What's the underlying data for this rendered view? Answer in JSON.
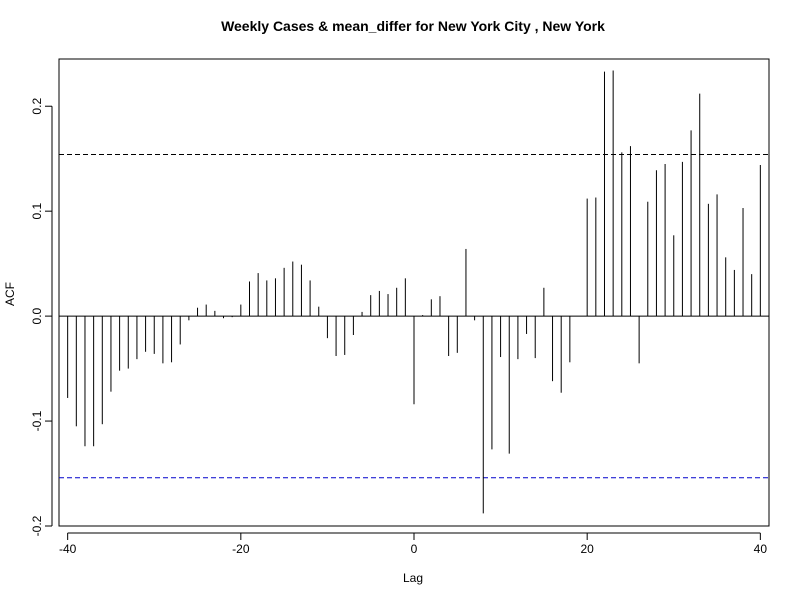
{
  "chart_data": {
    "type": "bar",
    "title": "Weekly Cases & mean_differ for New York City , New York",
    "xlabel": "Lag",
    "ylabel": "ACF",
    "xlim": [
      -41,
      41
    ],
    "ylim": [
      -0.2,
      0.245
    ],
    "x_ticks": [
      -40,
      -20,
      0,
      20,
      40
    ],
    "y_ticks": [
      -0.2,
      -0.1,
      0.0,
      0.1,
      0.2
    ],
    "x_tick_labels": [
      "-40",
      "-20",
      "0",
      "20",
      "40"
    ],
    "y_tick_labels": [
      "-0.2",
      "-0.1",
      "0.0",
      "0.1",
      "0.2"
    ],
    "confidence_bound": 0.154,
    "confidence_line_colors": {
      "upper": "#000000",
      "lower": "#0000CC"
    },
    "grid": false,
    "x": [
      -40,
      -39,
      -38,
      -37,
      -36,
      -35,
      -34,
      -33,
      -32,
      -31,
      -30,
      -29,
      -28,
      -27,
      -26,
      -25,
      -24,
      -23,
      -22,
      -21,
      -20,
      -19,
      -18,
      -17,
      -16,
      -15,
      -14,
      -13,
      -12,
      -11,
      -10,
      -9,
      -8,
      -7,
      -6,
      -5,
      -4,
      -3,
      -2,
      -1,
      0,
      1,
      2,
      3,
      4,
      5,
      6,
      7,
      8,
      9,
      10,
      11,
      12,
      13,
      14,
      15,
      16,
      17,
      18,
      19,
      20,
      21,
      22,
      23,
      24,
      25,
      26,
      27,
      28,
      29,
      30,
      31,
      32,
      33,
      34,
      35,
      36,
      37,
      38,
      39,
      40
    ],
    "values": [
      -0.078,
      -0.105,
      -0.124,
      -0.124,
      -0.103,
      -0.072,
      -0.052,
      -0.05,
      -0.041,
      -0.034,
      -0.036,
      -0.045,
      -0.044,
      -0.027,
      -0.004,
      0.008,
      0.011,
      0.005,
      -0.002,
      -0.001,
      0.011,
      0.033,
      0.041,
      0.034,
      0.036,
      0.046,
      0.052,
      0.049,
      0.034,
      0.009,
      -0.021,
      -0.038,
      -0.037,
      -0.018,
      0.004,
      0.02,
      0.024,
      0.021,
      0.027,
      0.036,
      -0.084,
      0.001,
      0.016,
      0.019,
      -0.038,
      -0.035,
      0.064,
      -0.004,
      -0.188,
      -0.127,
      -0.039,
      -0.131,
      -0.041,
      -0.017,
      -0.04,
      0.027,
      -0.062,
      -0.073,
      -0.044,
      0.0,
      0.112,
      0.113,
      0.233,
      0.234,
      0.156,
      0.162,
      -0.045,
      0.109,
      0.139,
      0.145,
      0.077,
      0.147,
      0.177,
      0.212,
      0.107,
      0.116,
      0.056,
      0.044,
      0.103,
      0.04,
      0.144
    ]
  }
}
